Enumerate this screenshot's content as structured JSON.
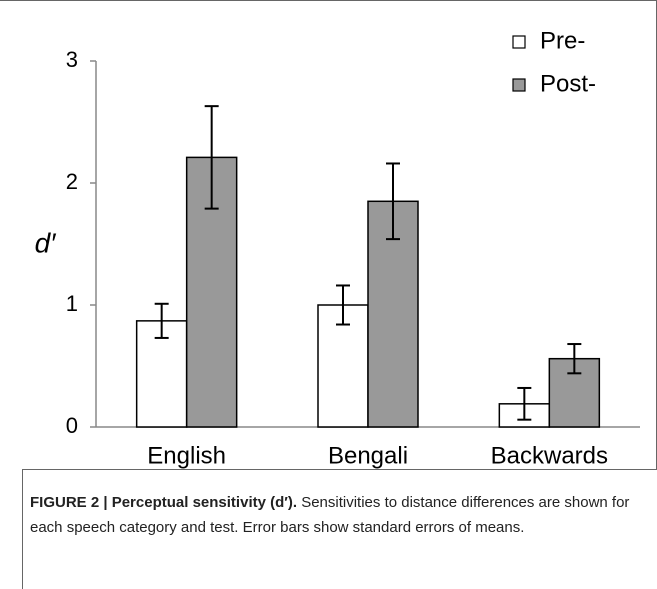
{
  "chart_data": {
    "type": "bar",
    "ylabel": "d′",
    "categories": [
      "English",
      "Bengali",
      "Backwards"
    ],
    "series": [
      {
        "name": "Pre-",
        "color": "#ffffff",
        "values": [
          0.87,
          1.0,
          0.19
        ],
        "errors": [
          0.14,
          0.16,
          0.13
        ]
      },
      {
        "name": "Post-",
        "color": "#999999",
        "values": [
          2.21,
          1.85,
          0.56
        ],
        "errors": [
          0.42,
          0.31,
          0.12
        ]
      }
    ],
    "ylim": [
      0,
      3
    ],
    "yticks": [
      0,
      1,
      2,
      3
    ],
    "legend": "top-right"
  },
  "caption": {
    "label": "FIGURE 2 | Perceptual sensitivity (d′).",
    "text": "Sensitivities to distance differences are shown for each speech category and test. Error bars show standard errors of means."
  }
}
